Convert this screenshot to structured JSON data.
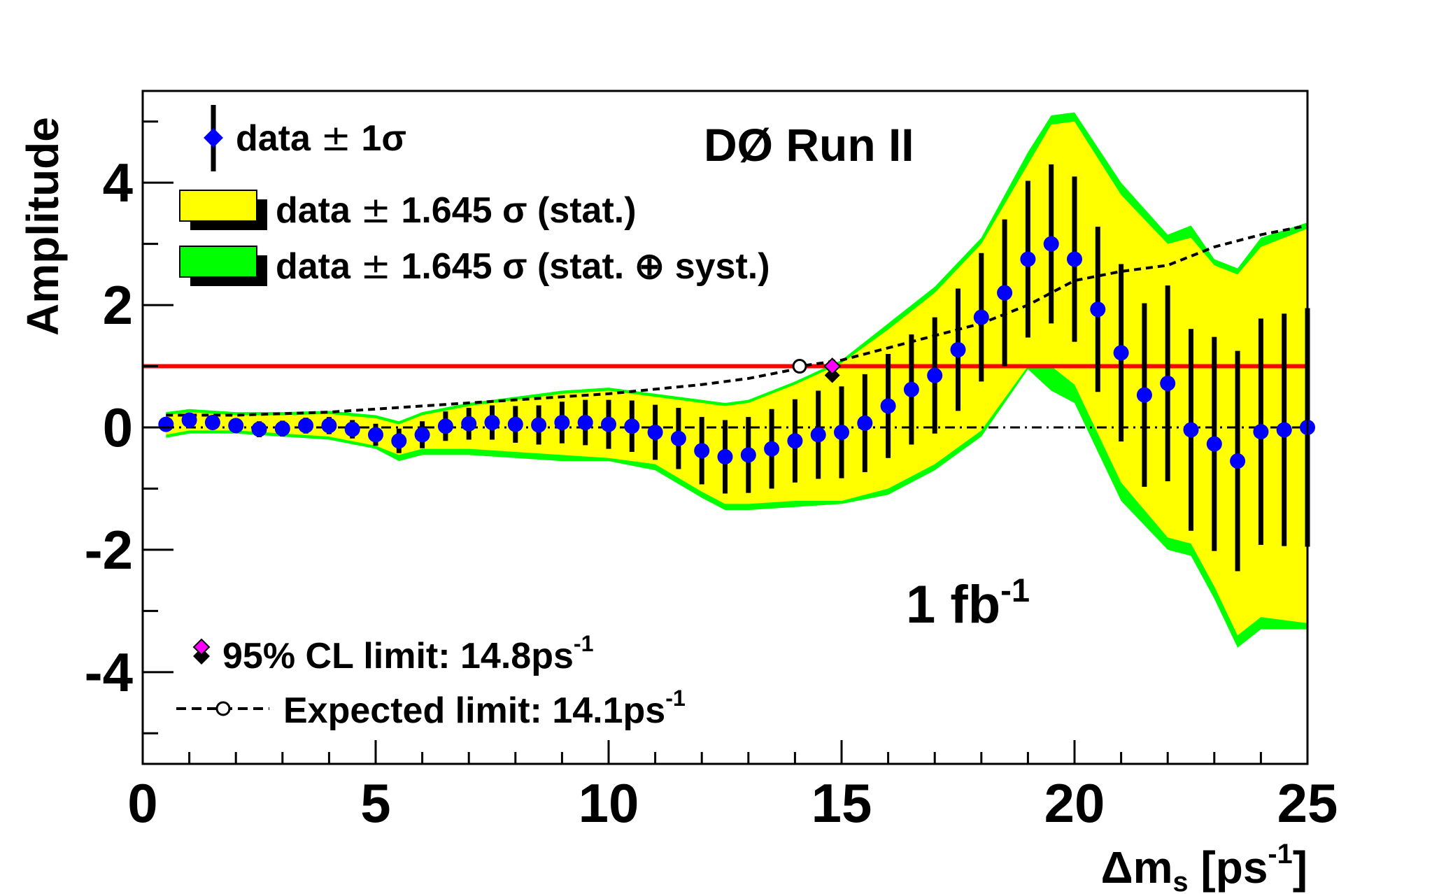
{
  "chart_data": {
    "type": "scatter",
    "title": "DØ Run II",
    "annotation_lumi": {
      "value": "1 fb",
      "sup": "-1"
    },
    "xlabel": {
      "main": "Δm",
      "sub": "s",
      "unit_open": " [ps",
      "sup": "-1",
      "unit_close": "]"
    },
    "ylabel": "Amplitude",
    "xlim": [
      0,
      25
    ],
    "ylim": [
      -5.5,
      5.5
    ],
    "x_ticks": [
      "0",
      "5",
      "10",
      "15",
      "20",
      "25"
    ],
    "y_ticks": [
      "-4",
      "-2",
      "0",
      "2",
      "4"
    ],
    "legend": {
      "data": {
        "main": "data ",
        "pm": "±",
        "rest": " 1σ"
      },
      "stat": {
        "main": "data ",
        "pm": "±",
        "rest": " 1.645 σ (stat.)"
      },
      "syst": {
        "main": "data ",
        "pm": "±",
        "rest": " 1.645 σ (stat. ⊕ syst.)"
      },
      "cl_limit": {
        "text": "95% CL limit: 14.8ps",
        "sup": "-1"
      },
      "expected": {
        "text": "Expected limit: 14.1ps",
        "sup": "-1"
      }
    },
    "reference_line": {
      "y": 1,
      "color": "#ff0000"
    },
    "zero_line": {
      "y": 0,
      "style": "dash-dot"
    },
    "colors": {
      "points": "#0000ff",
      "stat_band": "#ffff00",
      "syst_band": "#00ff00",
      "errorbar": "#000000"
    },
    "series": [
      {
        "kind": "points_with_errors",
        "x": [
          0.5,
          1.0,
          1.5,
          2.0,
          2.5,
          3.0,
          3.5,
          4.0,
          4.5,
          5.0,
          5.5,
          6.0,
          6.5,
          7.0,
          7.5,
          8.0,
          8.5,
          9.0,
          9.5,
          10.0,
          10.5,
          11.0,
          11.5,
          12.0,
          12.5,
          13.0,
          13.5,
          14.0,
          14.5,
          15.0,
          15.5,
          16.0,
          16.5,
          17.0,
          17.5,
          18.0,
          18.5,
          19.0,
          19.5,
          20.0,
          20.5,
          21.0,
          21.5,
          22.0,
          22.5,
          23.0,
          23.5,
          24.0,
          24.5,
          25.0
        ],
        "y": [
          0.05,
          0.12,
          0.08,
          0.03,
          -0.03,
          -0.02,
          0.03,
          0.03,
          -0.03,
          -0.12,
          -0.22,
          -0.12,
          0.02,
          0.06,
          0.08,
          0.05,
          0.04,
          0.08,
          0.08,
          0.05,
          0.02,
          -0.08,
          -0.18,
          -0.38,
          -0.48,
          -0.45,
          -0.35,
          -0.22,
          -0.12,
          -0.08,
          0.07,
          0.35,
          0.62,
          0.85,
          1.27,
          1.8,
          2.2,
          2.75,
          3.0,
          2.75,
          1.93,
          1.22,
          0.53,
          0.72,
          -0.04,
          -0.27,
          -0.55,
          -0.07,
          -0.04,
          0.0
        ],
        "err": [
          0.12,
          0.12,
          0.12,
          0.12,
          0.13,
          0.13,
          0.13,
          0.14,
          0.15,
          0.18,
          0.2,
          0.22,
          0.24,
          0.26,
          0.28,
          0.3,
          0.32,
          0.34,
          0.37,
          0.4,
          0.42,
          0.45,
          0.5,
          0.55,
          0.6,
          0.62,
          0.65,
          0.68,
          0.72,
          0.75,
          0.8,
          0.85,
          0.9,
          0.95,
          1.0,
          1.05,
          1.2,
          1.28,
          1.3,
          1.35,
          1.35,
          1.45,
          1.5,
          1.6,
          1.65,
          1.75,
          1.8,
          1.85,
          1.9,
          1.95
        ]
      },
      {
        "kind": "expected_limit_curve",
        "x": [
          0.5,
          2,
          4,
          6,
          8,
          10,
          12,
          13,
          14,
          14.1,
          15,
          16,
          17,
          18,
          19,
          20,
          21,
          22,
          23,
          24,
          25
        ],
        "y": [
          0.2,
          0.2,
          0.25,
          0.35,
          0.45,
          0.55,
          0.7,
          0.8,
          0.95,
          1.0,
          1.1,
          1.3,
          1.5,
          1.7,
          2.0,
          2.4,
          2.55,
          2.65,
          2.95,
          3.15,
          3.3
        ]
      },
      {
        "kind": "stat_band",
        "x": [
          0.5,
          1,
          2,
          3,
          4,
          5,
          5.5,
          6,
          7,
          8,
          9,
          10,
          11,
          12,
          12.5,
          13,
          14,
          15,
          16,
          17,
          18,
          19,
          19.5,
          20,
          21,
          22,
          22.5,
          23,
          23.5,
          24,
          25
        ],
        "upper": [
          0.2,
          0.25,
          0.2,
          0.2,
          0.22,
          0.15,
          0.05,
          0.2,
          0.35,
          0.45,
          0.55,
          0.6,
          0.5,
          0.4,
          0.35,
          0.4,
          0.7,
          1.05,
          1.6,
          2.2,
          3.0,
          4.3,
          4.95,
          5.0,
          3.8,
          3.0,
          3.1,
          2.65,
          2.5,
          2.95,
          3.25
        ],
        "lower": [
          -0.12,
          -0.05,
          -0.05,
          -0.1,
          -0.15,
          -0.3,
          -0.45,
          -0.35,
          -0.35,
          -0.4,
          -0.45,
          -0.5,
          -0.6,
          -1.05,
          -1.25,
          -1.25,
          -1.2,
          -1.2,
          -1.0,
          -0.6,
          -0.05,
          1.0,
          1.0,
          0.7,
          -0.9,
          -1.8,
          -1.9,
          -2.6,
          -3.4,
          -3.1,
          -3.2
        ]
      },
      {
        "kind": "syst_band",
        "x": [
          0.5,
          1,
          2,
          3,
          4,
          5,
          5.5,
          6,
          7,
          8,
          9,
          10,
          11,
          12,
          12.5,
          13,
          14,
          15,
          16,
          17,
          18,
          19,
          19.5,
          20,
          21,
          22,
          22.5,
          23,
          23.5,
          24,
          25
        ],
        "upper": [
          0.25,
          0.3,
          0.25,
          0.25,
          0.27,
          0.2,
          0.1,
          0.25,
          0.4,
          0.5,
          0.6,
          0.65,
          0.55,
          0.45,
          0.4,
          0.45,
          0.75,
          1.1,
          1.7,
          2.3,
          3.1,
          4.5,
          5.1,
          5.15,
          4.0,
          3.15,
          3.3,
          2.75,
          2.6,
          3.1,
          3.35
        ],
        "lower": [
          -0.17,
          -0.1,
          -0.1,
          -0.15,
          -0.2,
          -0.35,
          -0.55,
          -0.45,
          -0.45,
          -0.5,
          -0.55,
          -0.55,
          -0.7,
          -1.15,
          -1.35,
          -1.35,
          -1.3,
          -1.25,
          -1.1,
          -0.7,
          -0.15,
          0.95,
          0.6,
          0.4,
          -1.2,
          -2.0,
          -2.1,
          -2.8,
          -3.6,
          -3.3,
          -3.3
        ]
      }
    ],
    "markers": {
      "cl_limit": {
        "x": 14.8,
        "y": 1.0
      },
      "expected": {
        "x": 14.1,
        "y": 1.0
      }
    }
  }
}
